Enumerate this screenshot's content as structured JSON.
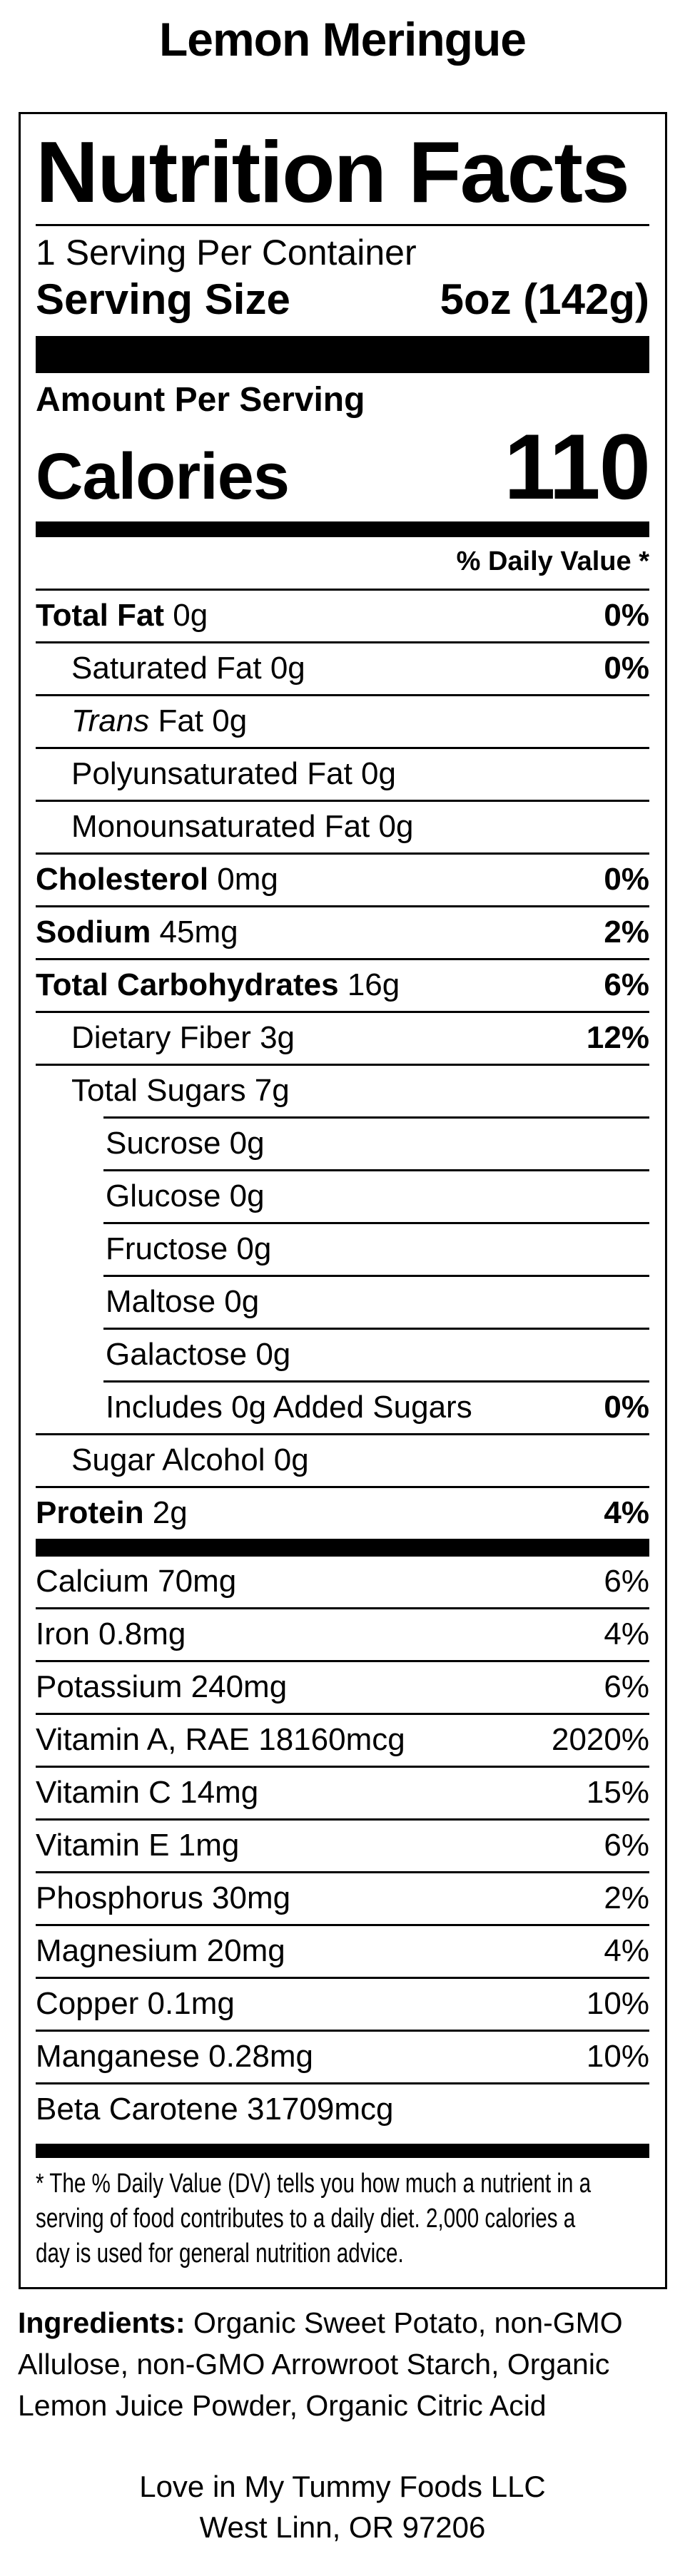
{
  "page": {
    "title": "Lemon Meringue"
  },
  "colors": {
    "text": "#000000",
    "background": "#ffffff",
    "divider": "#000000"
  },
  "label": {
    "title": "Nutrition Facts",
    "servings_per_container": "1 Serving Per Container",
    "serving_size_label": "Serving Size",
    "serving_size_value": "5oz (142g)",
    "amount_per_serving": "Amount Per Serving",
    "calories_label": "Calories",
    "calories_value": "110",
    "daily_value_header": "% Daily Value *",
    "nutrient_rows": [
      {
        "name": "Total Fat",
        "amount": "0g",
        "dv": "0%",
        "bold_name": true,
        "bold_dv": true,
        "indent": 0
      },
      {
        "name": "Saturated Fat",
        "amount": "0g",
        "dv": "0%",
        "bold_name": false,
        "bold_dv": true,
        "indent": 1
      },
      {
        "name": "Trans",
        "amount": "Fat 0g",
        "dv": "",
        "bold_name": false,
        "italic_name": true,
        "indent": 1
      },
      {
        "name": "Polyunsaturated Fat",
        "amount": "0g",
        "dv": "",
        "bold_name": false,
        "indent": 1
      },
      {
        "name": "Monounsaturated Fat",
        "amount": "0g",
        "dv": "",
        "bold_name": false,
        "indent": 1
      },
      {
        "name": "Cholesterol",
        "amount": "0mg",
        "dv": "0%",
        "bold_name": true,
        "bold_dv": true,
        "indent": 0
      },
      {
        "name": "Sodium",
        "amount": "45mg",
        "dv": "2%",
        "bold_name": true,
        "bold_dv": true,
        "indent": 0
      },
      {
        "name": "Total Carbohydrates",
        "amount": "16g",
        "dv": "6%",
        "bold_name": true,
        "bold_dv": true,
        "indent": 0
      },
      {
        "name": "Dietary Fiber",
        "amount": "3g",
        "dv": "12%",
        "bold_name": false,
        "bold_dv": true,
        "indent": 1
      },
      {
        "name": "Total Sugars",
        "amount": "7g",
        "dv": "",
        "bold_name": false,
        "indent": 1
      },
      {
        "name": "Sucrose",
        "amount": "0g",
        "dv": "",
        "bold_name": false,
        "indent": 2
      },
      {
        "name": "Glucose",
        "amount": "0g",
        "dv": "",
        "bold_name": false,
        "indent": 2
      },
      {
        "name": "Fructose",
        "amount": "0g",
        "dv": "",
        "bold_name": false,
        "indent": 2
      },
      {
        "name": "Maltose",
        "amount": "0g",
        "dv": "",
        "bold_name": false,
        "indent": 2
      },
      {
        "name": "Galactose",
        "amount": "0g",
        "dv": "",
        "bold_name": false,
        "indent": 2
      },
      {
        "name": "Includes 0g Added Sugars",
        "amount": "",
        "dv": "0%",
        "bold_name": false,
        "bold_dv": true,
        "indent": 2
      },
      {
        "name": "Sugar Alcohol",
        "amount": "0g",
        "dv": "",
        "bold_name": false,
        "indent": 1
      },
      {
        "name": "Protein",
        "amount": "2g",
        "dv": "4%",
        "bold_name": true,
        "bold_dv": true,
        "indent": 0
      }
    ],
    "micronutrient_rows": [
      {
        "name": "Calcium",
        "amount": "70mg",
        "dv": "6%",
        "bold_name": false,
        "bold_dv": false,
        "indent": 0
      },
      {
        "name": "Iron",
        "amount": "0.8mg",
        "dv": "4%",
        "bold_name": false,
        "bold_dv": false,
        "indent": 0
      },
      {
        "name": "Potassium",
        "amount": "240mg",
        "dv": "6%",
        "bold_name": false,
        "bold_dv": false,
        "indent": 0
      },
      {
        "name": "Vitamin A, RAE",
        "amount": "18160mcg",
        "dv": "2020%",
        "bold_name": false,
        "bold_dv": false,
        "indent": 0
      },
      {
        "name": "Vitamin C",
        "amount": "14mg",
        "dv": "15%",
        "bold_name": false,
        "bold_dv": false,
        "indent": 0
      },
      {
        "name": "Vitamin E",
        "amount": "1mg",
        "dv": "6%",
        "bold_name": false,
        "bold_dv": false,
        "indent": 0
      },
      {
        "name": "Phosphorus",
        "amount": "30mg",
        "dv": "2%",
        "bold_name": false,
        "bold_dv": false,
        "indent": 0
      },
      {
        "name": "Magnesium",
        "amount": "20mg",
        "dv": "4%",
        "bold_name": false,
        "bold_dv": false,
        "indent": 0
      },
      {
        "name": "Copper",
        "amount": "0.1mg",
        "dv": "10%",
        "bold_name": false,
        "bold_dv": false,
        "indent": 0
      },
      {
        "name": "Manganese",
        "amount": "0.28mg",
        "dv": "10%",
        "bold_name": false,
        "bold_dv": false,
        "indent": 0
      },
      {
        "name": "Beta Carotene",
        "amount": "31709mcg",
        "dv": "",
        "bold_name": false,
        "bold_dv": false,
        "indent": 0
      }
    ],
    "footnote_lines": [
      "* The % Daily Value (DV) tells you how much a nutrient in a",
      "serving of food contributes to a daily diet. 2,000 calories a",
      "day is used for general nutrition advice."
    ]
  },
  "ingredients": {
    "label": "Ingredients:",
    "line1": "Organic Sweet Potato, non-GMO",
    "line2": "Allulose, non-GMO Arrowroot Starch, Organic",
    "line3": "Lemon Juice Powder, Organic Citric Acid"
  },
  "footer": {
    "company": "Love in My Tummy Foods LLC",
    "address": "West Linn, OR 97206"
  }
}
